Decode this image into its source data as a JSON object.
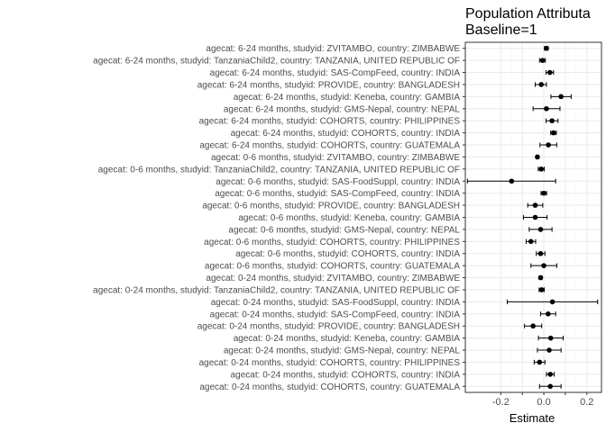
{
  "chart_data": {
    "type": "forest",
    "title": "Population Attributa",
    "subtitle": "Baseline=1",
    "xlabel": "Estimate",
    "ylabel": "",
    "xlim": [
      -0.365,
      0.268
    ],
    "xticks": [
      -0.2,
      -0.1,
      0.0,
      0.1,
      0.2
    ],
    "xtick_labels": [
      "-0.2",
      "",
      "0.0",
      "",
      "0.2"
    ],
    "grid": true,
    "colors": {
      "panel_border": "#333333",
      "grid_major": "#ebebeb",
      "grid_minor": "#f5f5f5",
      "point": "#000000"
    },
    "rows": [
      {
        "label": "agecat: 6-24 months, studyid: ZVITAMBO, country: ZIMBABWE",
        "est": 0.012,
        "lo": 0.003,
        "hi": 0.02
      },
      {
        "label": "agecat: 6-24 months, studyid: TanzaniaChild2, country: TANZANIA, UNITED REPUBLIC OF",
        "est": -0.006,
        "lo": -0.02,
        "hi": 0.007
      },
      {
        "label": "agecat: 6-24 months, studyid: SAS-CompFeed, country: INDIA",
        "est": 0.028,
        "lo": 0.01,
        "hi": 0.045
      },
      {
        "label": "agecat: 6-24 months, studyid: PROVIDE, country: BANGLADESH",
        "est": -0.012,
        "lo": -0.04,
        "hi": 0.012
      },
      {
        "label": "agecat: 6-24 months, studyid: Keneba, country: GAMBIA",
        "est": 0.08,
        "lo": 0.033,
        "hi": 0.127
      },
      {
        "label": "agecat: 6-24 months, studyid: GMS-Nepal, country: NEPAL",
        "est": 0.012,
        "lo": -0.05,
        "hi": 0.075
      },
      {
        "label": "agecat: 6-24 months, studyid: COHORTS, country: PHILIPPINES",
        "est": 0.038,
        "lo": 0.01,
        "hi": 0.066
      },
      {
        "label": "agecat: 6-24 months, studyid: COHORTS, country: INDIA",
        "est": 0.045,
        "lo": 0.032,
        "hi": 0.058
      },
      {
        "label": "agecat: 6-24 months, studyid: COHORTS, country: GUATEMALA",
        "est": 0.021,
        "lo": -0.018,
        "hi": 0.06
      },
      {
        "label": "agecat: 0-6 months, studyid: ZVITAMBO, country: ZIMBABWE",
        "est": -0.03,
        "lo": -0.036,
        "hi": -0.024
      },
      {
        "label": "agecat: 0-6 months, studyid: TanzaniaChild2, country: TANZANIA, UNITED REPUBLIC OF",
        "est": -0.012,
        "lo": -0.026,
        "hi": 0.002
      },
      {
        "label": "agecat: 0-6 months, studyid: SAS-FoodSuppl, country: INDIA",
        "est": -0.15,
        "lo": -0.355,
        "hi": 0.055
      },
      {
        "label": "agecat: 0-6 months, studyid: SAS-CompFeed, country: INDIA",
        "est": 0.0,
        "lo": -0.013,
        "hi": 0.013
      },
      {
        "label": "agecat: 0-6 months, studyid: PROVIDE, country: BANGLADESH",
        "est": -0.04,
        "lo": -0.075,
        "hi": -0.005
      },
      {
        "label": "agecat: 0-6 months, studyid: Keneba, country: GAMBIA",
        "est": -0.04,
        "lo": -0.095,
        "hi": 0.015
      },
      {
        "label": "agecat: 0-6 months, studyid: GMS-Nepal, country: NEPAL",
        "est": -0.015,
        "lo": -0.068,
        "hi": 0.038
      },
      {
        "label": "agecat: 0-6 months, studyid: COHORTS, country: PHILIPPINES",
        "est": -0.06,
        "lo": -0.082,
        "hi": -0.038
      },
      {
        "label": "agecat: 0-6 months, studyid: COHORTS, country: INDIA",
        "est": -0.015,
        "lo": -0.035,
        "hi": 0.005
      },
      {
        "label": "agecat: 0-6 months, studyid: COHORTS, country: GUATEMALA",
        "est": 0.0,
        "lo": -0.06,
        "hi": 0.06
      },
      {
        "label": "agecat: 0-24 months, studyid: ZVITAMBO, country: ZIMBABWE",
        "est": -0.015,
        "lo": -0.022,
        "hi": -0.008
      },
      {
        "label": "agecat: 0-24 months, studyid: TanzaniaChild2, country: TANZANIA, UNITED REPUBLIC OF",
        "est": -0.01,
        "lo": -0.022,
        "hi": 0.002
      },
      {
        "label": "agecat: 0-24 months, studyid: SAS-FoodSuppl, country: INDIA",
        "est": 0.04,
        "lo": -0.17,
        "hi": 0.25
      },
      {
        "label": "agecat: 0-24 months, studyid: SAS-CompFeed, country: INDIA",
        "est": 0.02,
        "lo": -0.015,
        "hi": 0.055
      },
      {
        "label": "agecat: 0-24 months, studyid: PROVIDE, country: BANGLADESH",
        "est": -0.05,
        "lo": -0.09,
        "hi": -0.01
      },
      {
        "label": "agecat: 0-24 months, studyid: Keneba, country: GAMBIA",
        "est": 0.032,
        "lo": -0.025,
        "hi": 0.09
      },
      {
        "label": "agecat: 0-24 months, studyid: GMS-Nepal, country: NEPAL",
        "est": 0.025,
        "lo": -0.03,
        "hi": 0.08
      },
      {
        "label": "agecat: 0-24 months, studyid: COHORTS, country: PHILIPPINES",
        "est": -0.02,
        "lo": -0.045,
        "hi": 0.005
      },
      {
        "label": "agecat: 0-24 months, studyid: COHORTS, country: INDIA",
        "est": 0.03,
        "lo": 0.012,
        "hi": 0.048
      },
      {
        "label": "agecat: 0-24 months, studyid: COHORTS, country: GUATEMALA",
        "est": 0.03,
        "lo": -0.02,
        "hi": 0.08
      }
    ]
  }
}
